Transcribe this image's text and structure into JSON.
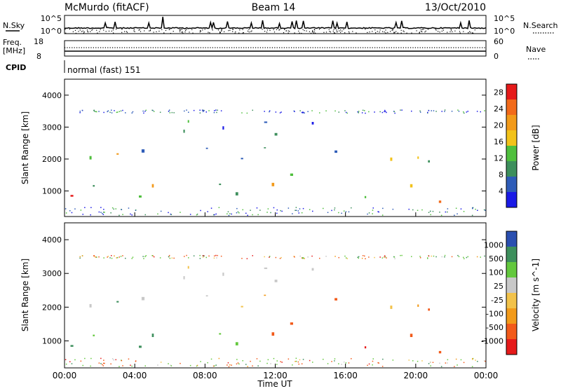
{
  "header": {
    "station": "McMurdo (fitACF)",
    "beam": "Beam 14",
    "date": "13/Oct/2010"
  },
  "noise_panel": {
    "left_label": "N.Sky",
    "right_label": "N.Search",
    "left_ticks": [
      "10^5",
      "10^0"
    ],
    "right_ticks": [
      "10^5",
      "10^0"
    ]
  },
  "freq_panel": {
    "left_label_1": "Freq.",
    "left_label_2": "[MHz]",
    "right_label": "Nave",
    "left_ticks": [
      "18",
      "8"
    ],
    "right_ticks": [
      "60",
      "0"
    ]
  },
  "cpid": {
    "label": "CPID",
    "value": "normal (fast) 151"
  },
  "colors": {
    "power_scale": [
      "#1a1ae6",
      "#2e5cb8",
      "#3d8f5c",
      "#4fbf3d",
      "#f2c21a",
      "#f29a1a",
      "#f26a1a",
      "#e61a1a"
    ],
    "velocity_scale": [
      "#e61a1a",
      "#f25a1a",
      "#f29a1a",
      "#f2c24a",
      "#c8c8c8",
      "#63c83d",
      "#3d8f5c",
      "#2a4fb0"
    ]
  },
  "chart_data": [
    {
      "type": "heatmap",
      "title": "",
      "xlabel": "Time UT",
      "ylabel": "Slant Range [km]",
      "x_ticks": [
        "00:00",
        "04:00",
        "08:00",
        "12:00",
        "16:00",
        "20:00",
        "00:00"
      ],
      "y_ticks": [
        "1000",
        "2000",
        "3000",
        "4000"
      ],
      "ylim": [
        200,
        4500
      ],
      "colorbar": {
        "label": "Power [dB]",
        "ticks": [
          "4",
          "8",
          "12",
          "16",
          "20",
          "24",
          "28"
        ],
        "range": [
          0,
          30
        ]
      }
    },
    {
      "type": "heatmap",
      "title": "",
      "xlabel": "Time UT",
      "ylabel": "Slant Range [km]",
      "x_ticks": [
        "00:00",
        "04:00",
        "08:00",
        "12:00",
        "16:00",
        "20:00",
        "00:00"
      ],
      "y_ticks": [
        "1000",
        "2000",
        "3000",
        "4000"
      ],
      "ylim": [
        200,
        4500
      ],
      "colorbar": {
        "label": "Velocity [m s^-1]",
        "ticks": [
          "1000",
          "500",
          "100",
          "25",
          "-25",
          "-100",
          "-500",
          "-1000"
        ],
        "range": [
          -1000,
          1000
        ]
      }
    }
  ]
}
